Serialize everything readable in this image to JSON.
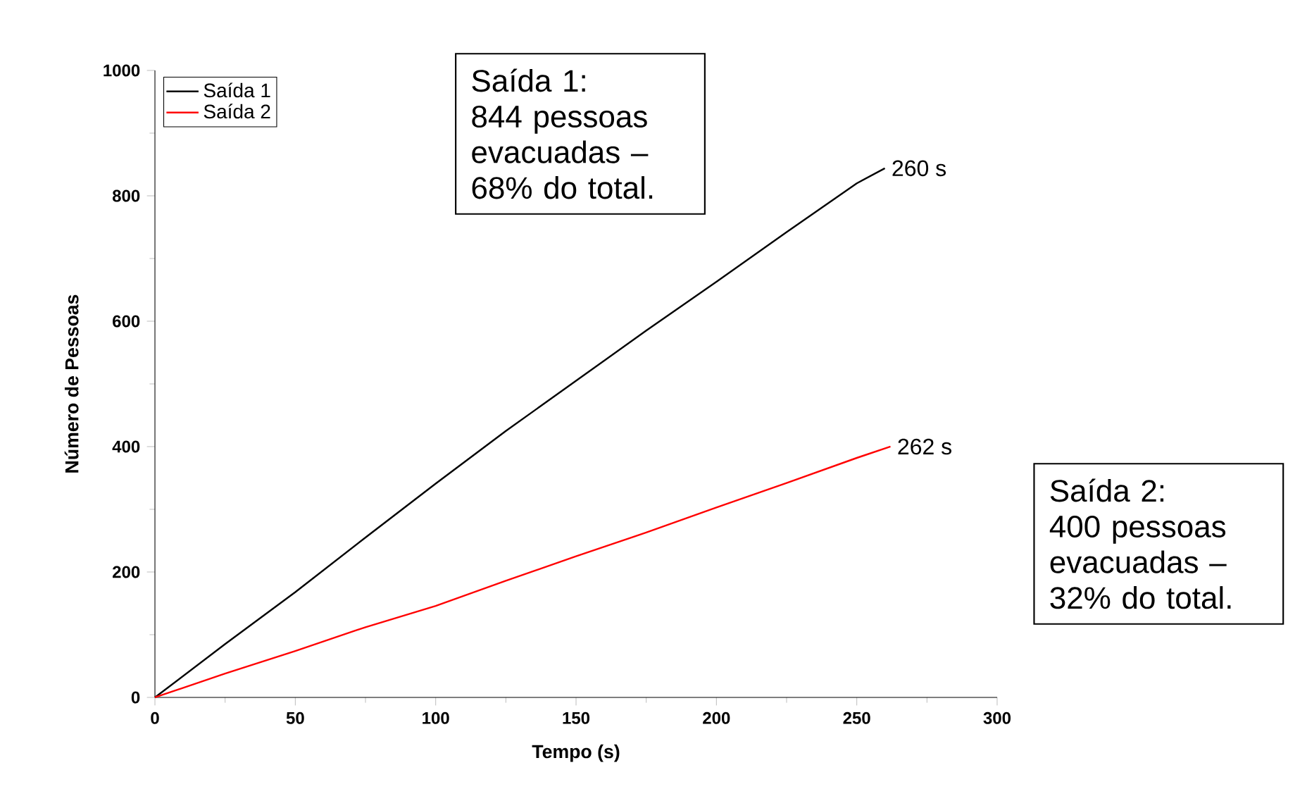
{
  "chart_data": {
    "type": "line",
    "xlabel": "Tempo (s)",
    "ylabel": "Número de Pessoas",
    "xlim": [
      0,
      300
    ],
    "xticks": [
      0,
      50,
      100,
      150,
      200,
      250,
      300
    ],
    "ylim": [
      0,
      1000
    ],
    "yticks": [
      0,
      200,
      400,
      600,
      800,
      1000
    ],
    "legend": "top left",
    "series": [
      {
        "name": "Saída 1",
        "color": "#000000",
        "x": [
          0,
          25,
          50,
          75,
          100,
          125,
          150,
          175,
          200,
          225,
          250,
          260
        ],
        "values": [
          0,
          85,
          168,
          255,
          341,
          425,
          505,
          585,
          663,
          742,
          820,
          844
        ]
      },
      {
        "name": "Saída 2",
        "color": "#ff0000",
        "x": [
          0,
          25,
          50,
          75,
          100,
          125,
          150,
          175,
          200,
          225,
          250,
          262
        ],
        "values": [
          0,
          38,
          74,
          112,
          146,
          186,
          225,
          263,
          303,
          342,
          382,
          400
        ]
      }
    ],
    "annotations": [
      {
        "text": "260 s",
        "x": 260,
        "y": 844
      },
      {
        "text": "262 s",
        "x": 262,
        "y": 400
      },
      "Saída 1: 844 pessoas evacuadas – 68% do total.",
      "Saída 2: 400 pessoas evacuadas – 32% do total."
    ]
  }
}
